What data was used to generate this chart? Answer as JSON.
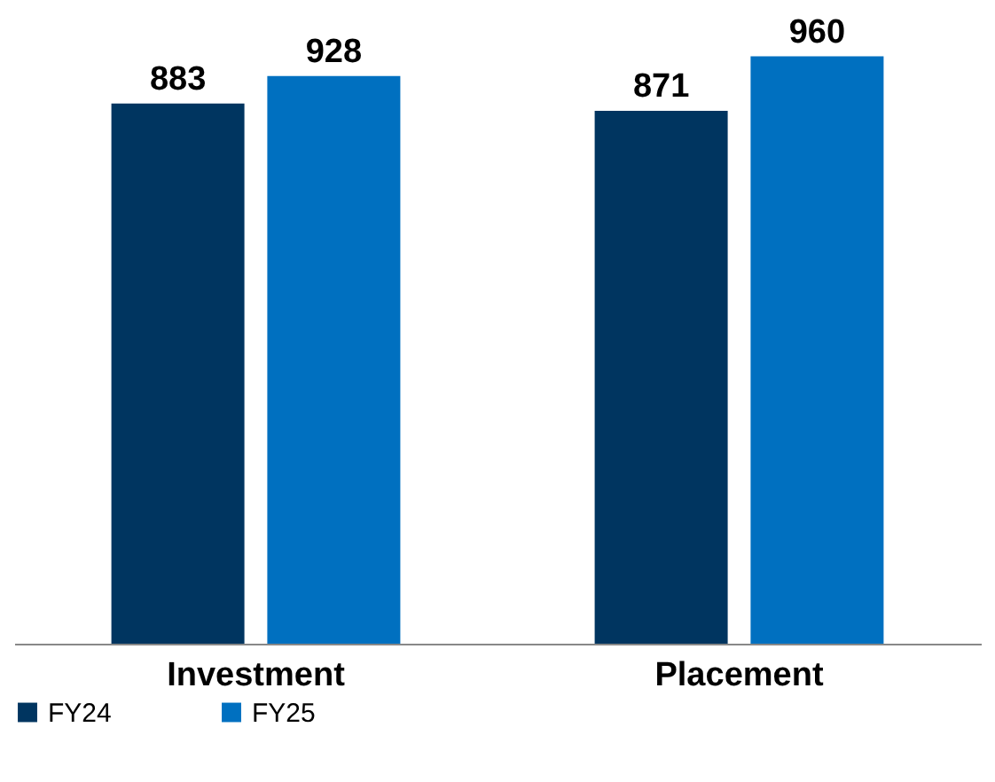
{
  "chart_data": {
    "type": "bar",
    "categories": [
      "Investment",
      "Placement"
    ],
    "series": [
      {
        "name": "FY24",
        "color": "#003560",
        "values": [
          883,
          871
        ]
      },
      {
        "name": "FY25",
        "color": "#0070c0",
        "values": [
          928,
          960
        ]
      }
    ],
    "data_labels": true,
    "tick_labels": "x",
    "legend": "bottom"
  }
}
